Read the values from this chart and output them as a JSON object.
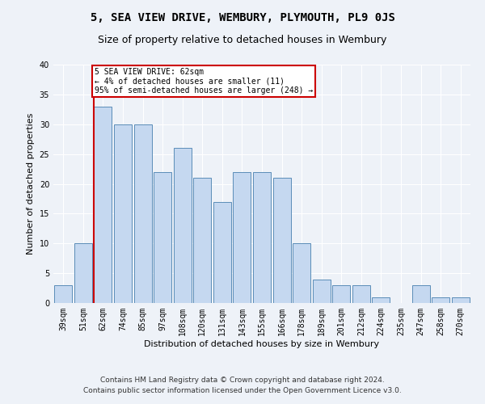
{
  "title": "5, SEA VIEW DRIVE, WEMBURY, PLYMOUTH, PL9 0JS",
  "subtitle": "Size of property relative to detached houses in Wembury",
  "xlabel": "Distribution of detached houses by size in Wembury",
  "ylabel": "Number of detached properties",
  "categories": [
    "39sqm",
    "51sqm",
    "62sqm",
    "74sqm",
    "85sqm",
    "97sqm",
    "108sqm",
    "120sqm",
    "131sqm",
    "143sqm",
    "155sqm",
    "166sqm",
    "178sqm",
    "189sqm",
    "201sqm",
    "212sqm",
    "224sqm",
    "235sqm",
    "247sqm",
    "258sqm",
    "270sqm"
  ],
  "values": [
    3,
    10,
    33,
    30,
    30,
    22,
    26,
    21,
    17,
    22,
    22,
    21,
    10,
    4,
    3,
    3,
    1,
    0,
    3,
    1,
    1
  ],
  "bar_color": "#c5d8f0",
  "bar_edge_color": "#5b8db8",
  "highlight_index": 2,
  "highlight_line_color": "#cc0000",
  "ylim": [
    0,
    40
  ],
  "yticks": [
    0,
    5,
    10,
    15,
    20,
    25,
    30,
    35,
    40
  ],
  "annotation_text": "5 SEA VIEW DRIVE: 62sqm\n← 4% of detached houses are smaller (11)\n95% of semi-detached houses are larger (248) →",
  "annotation_box_color": "#ffffff",
  "annotation_box_edge": "#cc0000",
  "footer_line1": "Contains HM Land Registry data © Crown copyright and database right 2024.",
  "footer_line2": "Contains public sector information licensed under the Open Government Licence v3.0.",
  "background_color": "#eef2f8",
  "grid_color": "#ffffff",
  "title_fontsize": 10,
  "subtitle_fontsize": 9,
  "tick_fontsize": 7,
  "ylabel_fontsize": 8,
  "xlabel_fontsize": 8,
  "footer_fontsize": 6.5
}
